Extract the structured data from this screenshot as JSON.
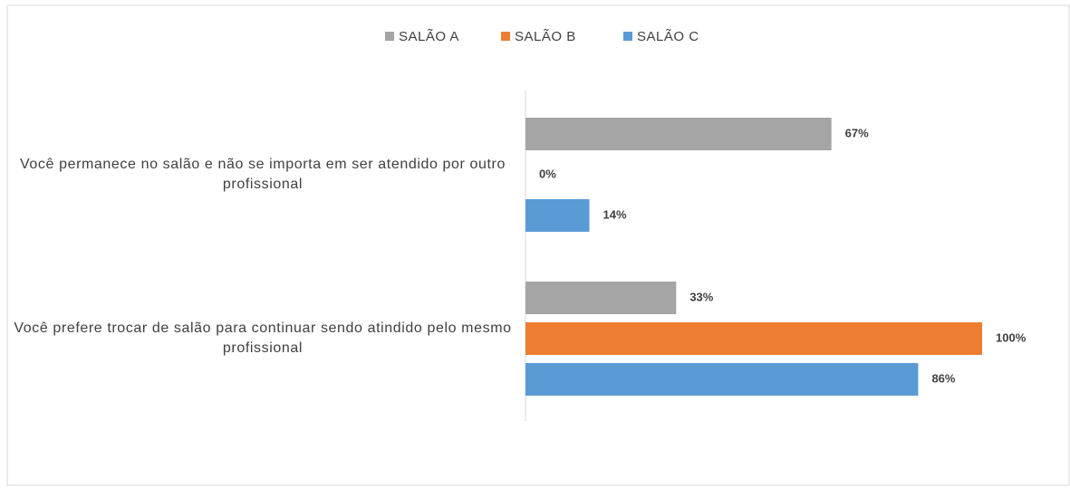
{
  "chart_data": {
    "type": "bar",
    "orientation": "horizontal",
    "categories": [
      "Você permanece no salão e não se importa em ser atendido por outro profissional",
      "Você  prefere trocar de salão para continuar sendo atindido pelo mesmo profissional"
    ],
    "series": [
      {
        "name": "SALÃO A",
        "color": "#a5a5a5",
        "values": [
          67,
          33
        ],
        "value_labels": [
          "67%",
          "33%"
        ]
      },
      {
        "name": "SALÃO B",
        "color": "#ed7d31",
        "values": [
          0,
          100
        ],
        "value_labels": [
          "0%",
          "100%"
        ]
      },
      {
        "name": "SALÃO C",
        "color": "#5b9bd5",
        "values": [
          14,
          86
        ],
        "value_labels": [
          "14%",
          "86%"
        ]
      }
    ],
    "xlim": [
      0,
      100
    ],
    "legend": "top"
  }
}
